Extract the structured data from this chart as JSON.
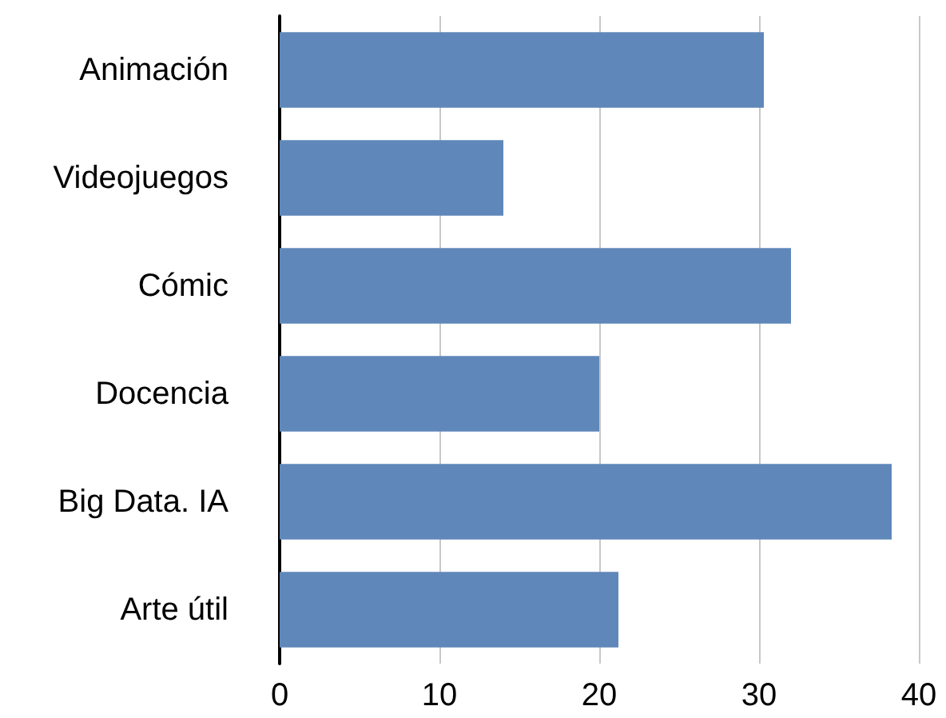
{
  "chart_data": {
    "type": "bar",
    "orientation": "horizontal",
    "categories": [
      "Animación",
      "Videojuegos",
      "Cómic",
      "Docencia",
      "Big Data. IA",
      "Arte útil"
    ],
    "values": [
      30.3,
      14,
      32,
      20,
      38.3,
      21.2
    ],
    "color": "#5f87ba",
    "xlim": [
      0,
      40
    ],
    "xticks": [
      0,
      10,
      20,
      30,
      40
    ],
    "grid": "x"
  }
}
